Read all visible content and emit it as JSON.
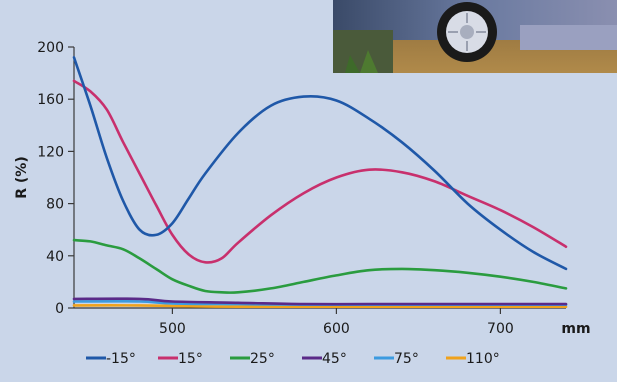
{
  "colors": {
    "background": "#cad6e9",
    "axis": "#3a3a3a"
  },
  "photo": {
    "description_icon": "car-photo"
  },
  "chart_data": {
    "type": "line",
    "xlabel": "mm",
    "ylabel": "R (%)",
    "xlim": [
      440,
      740
    ],
    "ylim": [
      0,
      200
    ],
    "xticks": [
      500,
      600,
      700
    ],
    "yticks": [
      0,
      40,
      80,
      120,
      160,
      200
    ],
    "grid": false,
    "legend_position": "bottom",
    "series": [
      {
        "name": "-15°",
        "color": "#1f58a8",
        "x": [
          440,
          450,
          460,
          470,
          480,
          490,
          500,
          510,
          520,
          540,
          560,
          580,
          600,
          620,
          640,
          660,
          680,
          700,
          720,
          740
        ],
        "y": [
          192,
          155,
          115,
          82,
          60,
          56,
          65,
          84,
          103,
          134,
          155,
          162,
          159,
          145,
          127,
          105,
          80,
          60,
          43,
          30
        ]
      },
      {
        "name": "15°",
        "color": "#c8306d",
        "x": [
          440,
          450,
          460,
          470,
          480,
          490,
          500,
          510,
          520,
          530,
          540,
          560,
          580,
          600,
          620,
          640,
          660,
          680,
          700,
          720,
          740
        ],
        "y": [
          174,
          166,
          152,
          127,
          103,
          79,
          56,
          41,
          35,
          38,
          50,
          71,
          88,
          100,
          106,
          104,
          97,
          86,
          75,
          62,
          47
        ]
      },
      {
        "name": "25°",
        "color": "#2a9c3f",
        "x": [
          440,
          450,
          460,
          470,
          480,
          490,
          500,
          510,
          520,
          530,
          540,
          560,
          580,
          600,
          620,
          640,
          660,
          680,
          700,
          720,
          740
        ],
        "y": [
          52,
          51,
          48,
          45,
          38,
          30,
          22,
          17,
          13,
          12,
          12,
          15,
          20,
          25,
          29,
          30,
          29,
          27,
          24,
          20,
          15
        ]
      },
      {
        "name": "45°",
        "color": "#5a2a88",
        "x": [
          440,
          480,
          500,
          540,
          580,
          620,
          660,
          700,
          740
        ],
        "y": [
          7,
          7,
          5,
          4,
          3,
          3,
          3,
          3,
          3
        ]
      },
      {
        "name": "75°",
        "color": "#3c9be0",
        "x": [
          440,
          480,
          500,
          540,
          580,
          620,
          660,
          700,
          740
        ],
        "y": [
          5,
          5,
          3.5,
          3,
          2.5,
          2.5,
          2.5,
          2.5,
          2.5
        ]
      },
      {
        "name": "110°",
        "color": "#f0a21c",
        "x": [
          440,
          480,
          500,
          540,
          580,
          620,
          660,
          700,
          740
        ],
        "y": [
          2,
          2,
          1.5,
          1,
          1,
          1,
          1,
          1,
          1
        ]
      }
    ]
  }
}
